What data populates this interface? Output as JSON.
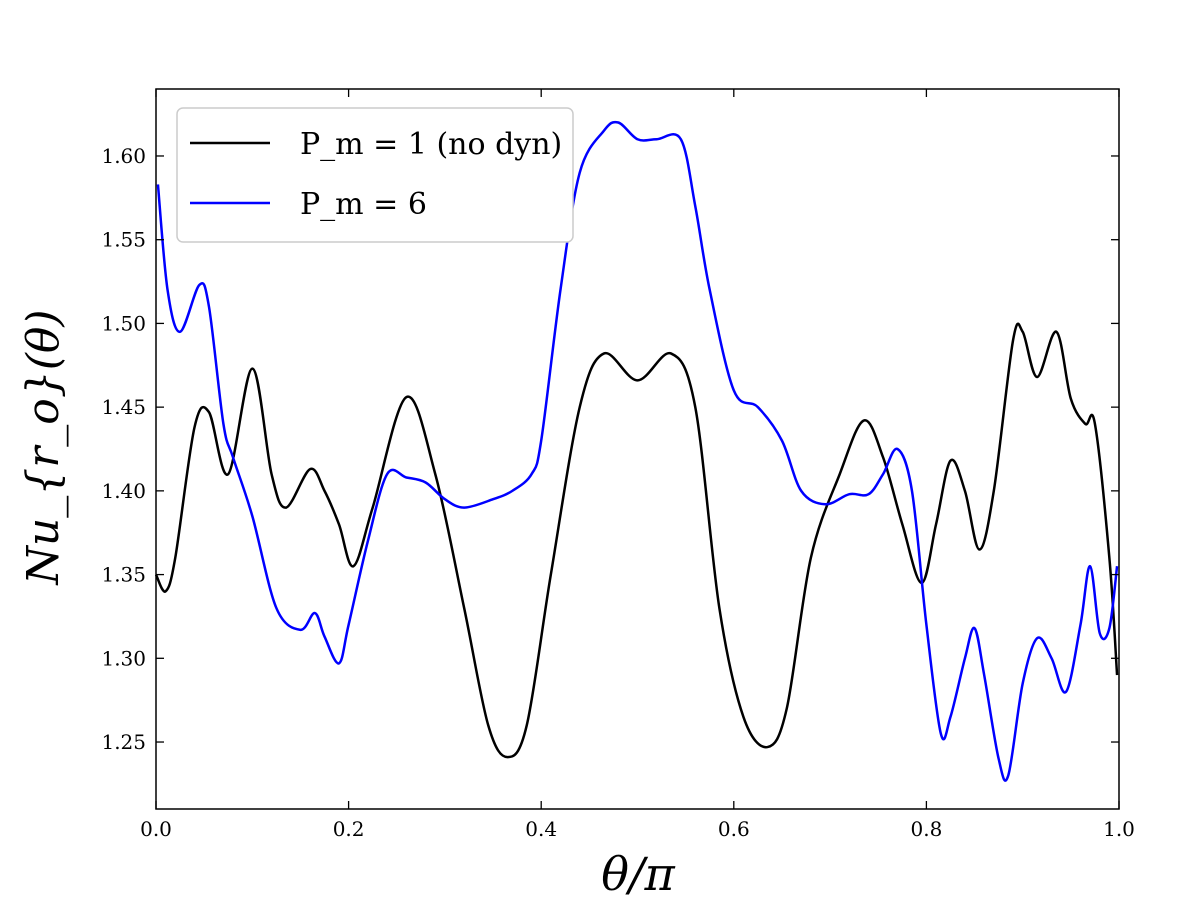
{
  "chart_data": {
    "type": "line",
    "title": "",
    "xlabel": "θ/π",
    "ylabel": "Nu_{r_o}(θ)",
    "xlim": [
      0.0,
      1.0
    ],
    "ylim": [
      1.21,
      1.64
    ],
    "xticks": [
      0.0,
      0.2,
      0.4,
      0.6,
      0.8,
      1.0
    ],
    "xtick_labels": [
      "0.0",
      "0.2",
      "0.4",
      "0.6",
      "0.8",
      "1.0"
    ],
    "yticks": [
      1.25,
      1.3,
      1.35,
      1.4,
      1.45,
      1.5,
      1.55,
      1.6
    ],
    "ytick_labels": [
      "1.25",
      "1.30",
      "1.35",
      "1.40",
      "1.45",
      "1.50",
      "1.55",
      "1.60"
    ],
    "grid": false,
    "legend": "top-left",
    "series": [
      {
        "name": "P_m = 1 (no dyn)",
        "legend_label": "P_m = 1 (no dyn)",
        "color": "#000000",
        "x": [
          0.0,
          0.01,
          0.02,
          0.04,
          0.055,
          0.075,
          0.1,
          0.12,
          0.135,
          0.16,
          0.175,
          0.19,
          0.205,
          0.225,
          0.26,
          0.29,
          0.32,
          0.345,
          0.365,
          0.385,
          0.41,
          0.44,
          0.465,
          0.5,
          0.535,
          0.56,
          0.585,
          0.61,
          0.635,
          0.655,
          0.68,
          0.71,
          0.735,
          0.755,
          0.775,
          0.795,
          0.81,
          0.825,
          0.84,
          0.855,
          0.87,
          0.89,
          0.9,
          0.915,
          0.935,
          0.95,
          0.965,
          0.975,
          0.99,
          0.998
        ],
        "y": [
          1.35,
          1.34,
          1.36,
          1.438,
          1.447,
          1.41,
          1.473,
          1.41,
          1.39,
          1.413,
          1.4,
          1.38,
          1.355,
          1.39,
          1.456,
          1.41,
          1.33,
          1.26,
          1.241,
          1.26,
          1.35,
          1.45,
          1.482,
          1.466,
          1.482,
          1.45,
          1.33,
          1.265,
          1.247,
          1.27,
          1.36,
          1.41,
          1.442,
          1.42,
          1.38,
          1.345,
          1.38,
          1.418,
          1.4,
          1.365,
          1.4,
          1.49,
          1.495,
          1.468,
          1.495,
          1.455,
          1.44,
          1.44,
          1.36,
          1.29
        ]
      },
      {
        "name": "P_m = 6",
        "legend_label": "P_m = 6",
        "color": "#0000ff",
        "x": [
          0.002,
          0.012,
          0.025,
          0.045,
          0.055,
          0.07,
          0.08,
          0.1,
          0.125,
          0.15,
          0.165,
          0.175,
          0.19,
          0.2,
          0.22,
          0.24,
          0.26,
          0.28,
          0.3,
          0.32,
          0.35,
          0.37,
          0.39,
          0.4,
          0.42,
          0.44,
          0.465,
          0.48,
          0.5,
          0.52,
          0.545,
          0.56,
          0.575,
          0.6,
          0.625,
          0.65,
          0.67,
          0.695,
          0.72,
          0.74,
          0.755,
          0.77,
          0.785,
          0.8,
          0.815,
          0.825,
          0.84,
          0.85,
          0.86,
          0.875,
          0.885,
          0.9,
          0.915,
          0.93,
          0.945,
          0.96,
          0.97,
          0.98,
          0.99,
          0.998
        ],
        "y": [
          1.583,
          1.52,
          1.495,
          1.523,
          1.51,
          1.44,
          1.42,
          1.385,
          1.33,
          1.317,
          1.327,
          1.313,
          1.297,
          1.32,
          1.37,
          1.41,
          1.408,
          1.405,
          1.395,
          1.39,
          1.395,
          1.4,
          1.41,
          1.43,
          1.52,
          1.59,
          1.615,
          1.62,
          1.61,
          1.61,
          1.61,
          1.57,
          1.52,
          1.46,
          1.45,
          1.43,
          1.4,
          1.392,
          1.398,
          1.398,
          1.41,
          1.425,
          1.4,
          1.32,
          1.255,
          1.265,
          1.3,
          1.318,
          1.29,
          1.24,
          1.23,
          1.285,
          1.312,
          1.3,
          1.28,
          1.32,
          1.355,
          1.315,
          1.318,
          1.355
        ]
      }
    ]
  }
}
